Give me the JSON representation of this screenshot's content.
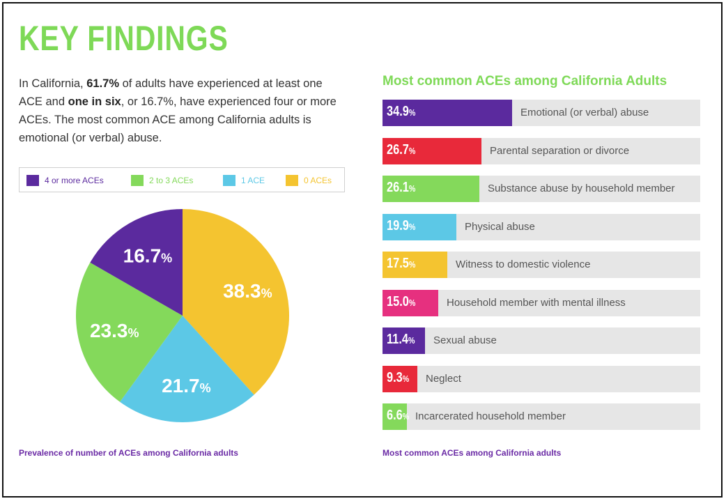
{
  "title": "KEY FINDINGS",
  "intro": {
    "p1": "In California, ",
    "b1": "61.7%",
    "p2": " of adults have experienced at least one ACE and ",
    "b2": "one in six",
    "p3": ", or 16.7%, have experienced four or more ACEs.  The most common ACE among California adults is emotional (or verbal) abuse."
  },
  "colors": {
    "purple": "#5b2a9e",
    "green": "#84d95b",
    "blue": "#5cc8e6",
    "yellow": "#f4c430",
    "red": "#e8293a",
    "pink": "#e6307f",
    "accent_green": "#7ed957",
    "caption_purple": "#6a2aa5"
  },
  "chart_data": [
    {
      "type": "pie",
      "caption": "Prevalence of number of ACEs among California adults",
      "legend": [
        {
          "label": "4 or more ACEs",
          "color": "#5b2a9e"
        },
        {
          "label": "2 to 3 ACEs",
          "color": "#84d95b"
        },
        {
          "label": "1 ACE",
          "color": "#5cc8e6"
        },
        {
          "label": "0 ACEs",
          "color": "#f4c430"
        }
      ],
      "slices": [
        {
          "label": "0 ACEs",
          "value": 38.3,
          "display": "38.3",
          "color": "#f4c430"
        },
        {
          "label": "1 ACE",
          "value": 21.7,
          "display": "21.7",
          "color": "#5cc8e6"
        },
        {
          "label": "2 to 3 ACEs",
          "value": 23.3,
          "display": "23.3",
          "color": "#84d95b"
        },
        {
          "label": "4 or more ACEs",
          "value": 16.7,
          "display": "16.7",
          "color": "#5b2a9e"
        }
      ],
      "unit": "%"
    },
    {
      "type": "bar",
      "title": "Most common ACEs among California Adults",
      "caption": "Most common ACEs among California adults",
      "unit": "%",
      "categories": [
        "Emotional (or verbal) abuse",
        "Parental separation or divorce",
        "Substance abuse by household member",
        "Physical abuse",
        "Witness to domestic violence",
        "Household member with mental illness",
        "Sexual abuse",
        "Neglect",
        "Incarcerated household member"
      ],
      "values": [
        34.9,
        26.7,
        26.1,
        19.9,
        17.5,
        15.0,
        11.4,
        9.3,
        6.6
      ],
      "display": [
        "34.9",
        "26.7",
        "26.1",
        "19.9",
        "17.5",
        "15.0",
        "11.4",
        "9.3",
        "6.6"
      ],
      "colors": [
        "#5b2a9e",
        "#e8293a",
        "#84d95b",
        "#5cc8e6",
        "#f4c430",
        "#e6307f",
        "#5b2a9e",
        "#e8293a",
        "#84d95b"
      ],
      "xlim": [
        0,
        100
      ]
    }
  ]
}
